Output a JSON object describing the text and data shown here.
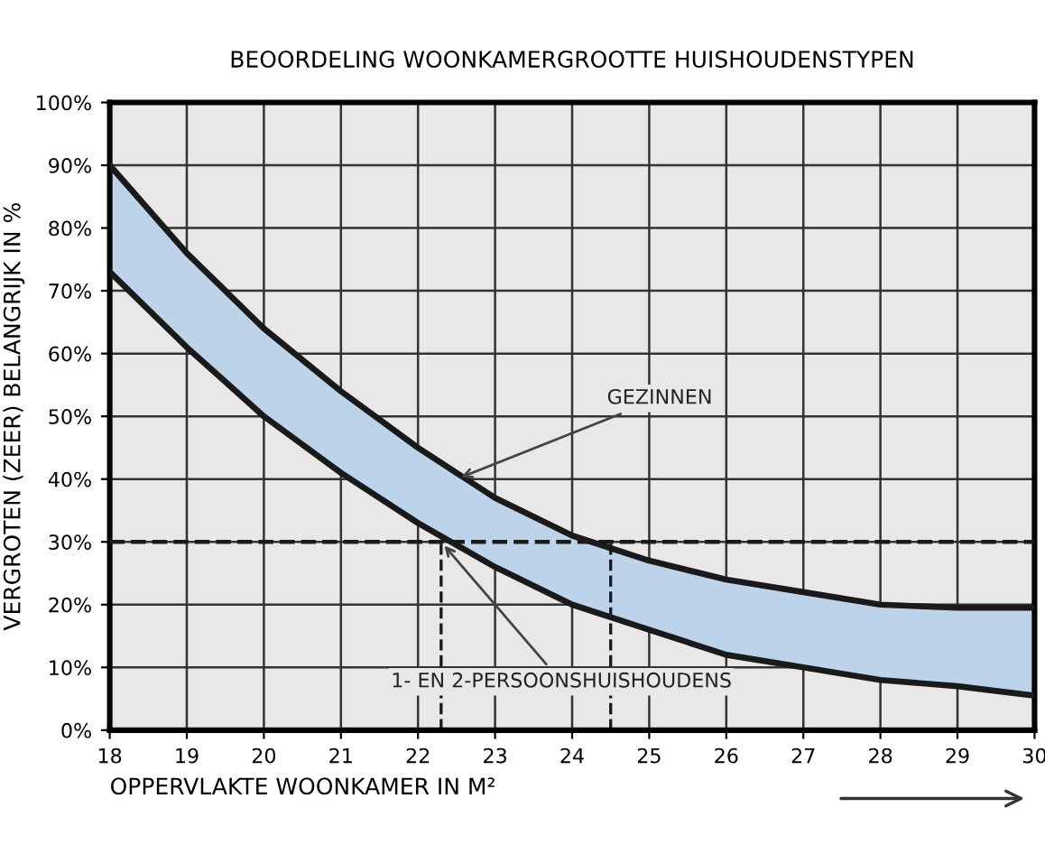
{
  "chart_data": {
    "type": "line",
    "title": "BEOORDELING WOONKAMERGROOTTE HUISHOUDENSTYPEN",
    "xlabel": "OPPERVLAKTE WOONKAMER IN M²",
    "ylabel": "VERGROTEN (ZEER) BELANGRIJK IN %",
    "x": [
      18,
      19,
      20,
      21,
      22,
      23,
      24,
      25,
      26,
      27,
      28,
      29,
      30
    ],
    "series": [
      {
        "color": "#1a1a1a",
        "values": [
          90,
          76,
          64,
          54,
          45,
          37,
          31,
          27,
          24,
          22,
          20,
          19.5,
          19.5
        ]
      },
      {
        "color": "#1a1a1a",
        "values": [
          73,
          61,
          50,
          41,
          33,
          26,
          20,
          16,
          12,
          10,
          8,
          7,
          5.5
        ],
        "lower": [
          73,
          61,
          50,
          41,
          33,
          26,
          20,
          16,
          12,
          10,
          8,
          7,
          5.5
        ],
        "upper": [
          90,
          76,
          64,
          54,
          45,
          37,
          31,
          27,
          24,
          22,
          20,
          19.5,
          19.5
        ]
      }
    ],
    "xlim": [
      18,
      30
    ],
    "xticks": [
      18,
      19,
      20,
      21,
      22,
      23,
      24,
      25,
      26,
      27,
      28,
      29,
      30
    ],
    "ylim": [
      0,
      100
    ],
    "yticks": [
      {
        "value": 0,
        "label": "0%"
      },
      {
        "value": 10,
        "label": "10%"
      },
      {
        "value": 20,
        "label": "20%"
      },
      {
        "value": 30,
        "label": "30%"
      },
      {
        "value": 40,
        "label": "40%"
      },
      {
        "value": 50,
        "label": "50%"
      },
      {
        "value": 60,
        "label": "60%"
      },
      {
        "value": 70,
        "label": "70%"
      },
      {
        "value": 80,
        "label": "80%"
      },
      {
        "value": 90,
        "label": "90%"
      },
      {
        "value": 100,
        "label": "100%"
      }
    ],
    "ref_lines": [
      {
        "axis": "y",
        "value": 30,
        "line_style": "dashed",
        "color": "#1a1a1a"
      },
      {
        "axis": "x",
        "value": 22.3,
        "line_style": "dashed",
        "color": "#1a1a1a"
      },
      {
        "axis": "x",
        "value": 24.5,
        "line_style": "dashed",
        "color": "#1a1a1a"
      }
    ],
    "annotations": [
      {
        "text": "GEZINNEN",
        "x": 22.5,
        "y": 40
      },
      {
        "text": "1- EN 2-PERSOONSHUISHOUDENS",
        "x": 22.3,
        "y": 30
      }
    ],
    "grid": true
  }
}
